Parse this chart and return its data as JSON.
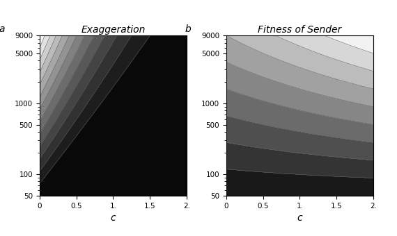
{
  "panel_a_title": "Exaggeration",
  "panel_b_title": "Fitness of Sender",
  "panel_a_label": "a",
  "panel_b_label": "b",
  "xlabel": "c",
  "c_ticks": [
    0,
    0.5,
    1.0,
    1.5,
    2.0
  ],
  "c_tick_labels": [
    "0",
    "0.5",
    "1.",
    "1.5",
    "2."
  ],
  "y_ticks": [
    50,
    100,
    500,
    1000,
    5000,
    9000
  ],
  "y_tick_labels": [
    "50",
    "100",
    "500",
    "1000",
    "5000",
    "9000"
  ],
  "figsize": [
    5.7,
    3.4
  ],
  "dpi": 100,
  "n_contour_levels_a": 14,
  "n_contour_levels_b": 10
}
